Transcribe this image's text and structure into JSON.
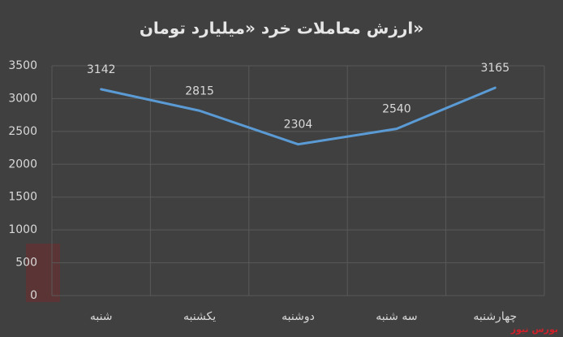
{
  "chart_data": {
    "type": "line",
    "title": "ارزش معاملات خرد «میلیارد تومان»",
    "categories": [
      "شنبه",
      "یکشنبه",
      "دوشنبه",
      "سه شنبه",
      "چهارشنبه"
    ],
    "series": [
      {
        "name": "ارزش معاملات خرد",
        "color": "#5b9bd5",
        "values": [
          3142,
          2815,
          2304,
          2540,
          3165
        ]
      }
    ],
    "ylim": [
      0,
      3500
    ],
    "yticks": [
      0,
      500,
      1000,
      1500,
      2000,
      2500,
      3000,
      3500
    ],
    "grid": true,
    "watermark": "بورس نیوز"
  }
}
